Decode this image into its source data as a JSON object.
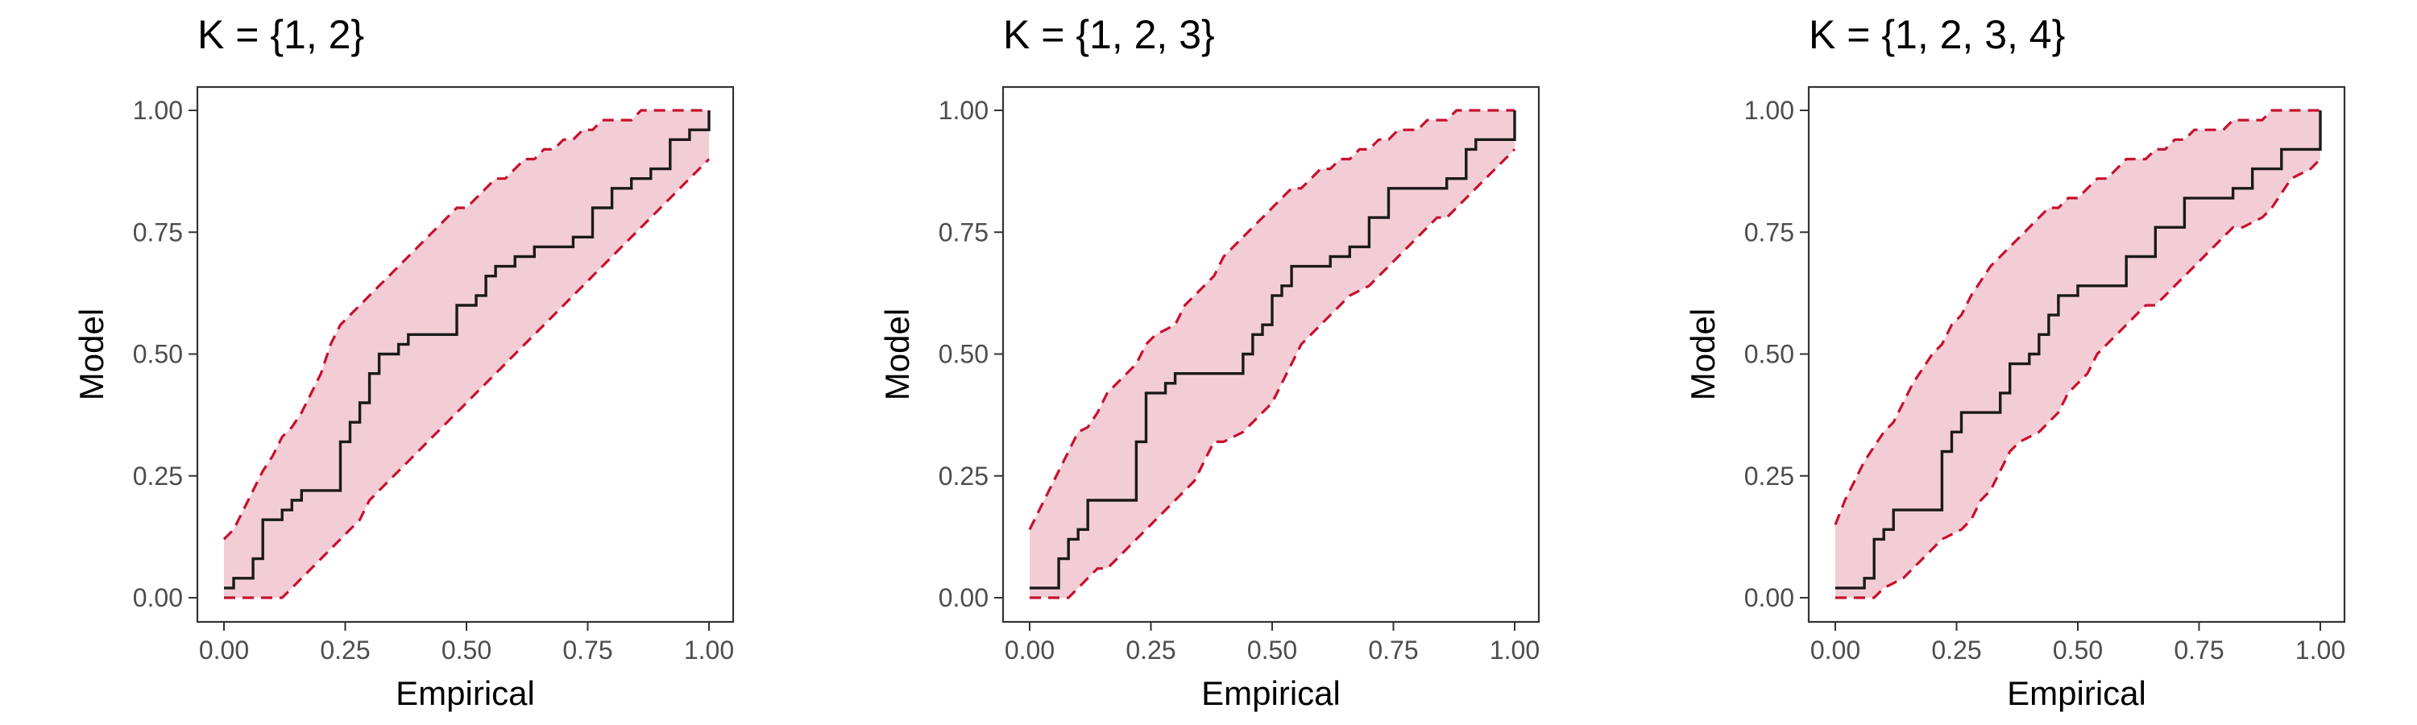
{
  "colors": {
    "band_fill": "#F3CDD5",
    "band_edge": "#C8102E",
    "line": "#1a1a1a",
    "axis": "#333333",
    "tick_text": "#4d4d4d"
  },
  "chart_data": [
    {
      "type": "line",
      "title": "K = {1, 2}",
      "xlabel": "Empirical",
      "ylabel": "Model",
      "xlim": [
        0,
        1
      ],
      "ylim": [
        0,
        1
      ],
      "xticks": [
        "0.00",
        "0.25",
        "0.50",
        "0.75",
        "1.00"
      ],
      "yticks": [
        "0.00",
        "0.25",
        "0.50",
        "0.75",
        "1.00"
      ],
      "grid": false,
      "band": {
        "x": [
          0.0,
          0.02,
          0.04,
          0.06,
          0.08,
          0.1,
          0.12,
          0.14,
          0.16,
          0.18,
          0.2,
          0.22,
          0.24,
          0.26,
          0.28,
          0.3,
          0.32,
          0.34,
          0.36,
          0.38,
          0.4,
          0.42,
          0.44,
          0.46,
          0.48,
          0.5,
          0.52,
          0.54,
          0.56,
          0.58,
          0.6,
          0.62,
          0.64,
          0.66,
          0.68,
          0.7,
          0.72,
          0.74,
          0.76,
          0.78,
          0.8,
          0.82,
          0.84,
          0.86,
          0.88,
          0.9,
          0.92,
          0.94,
          0.96,
          0.98,
          1.0
        ],
        "upper": [
          0.12,
          0.14,
          0.18,
          0.22,
          0.26,
          0.29,
          0.33,
          0.35,
          0.38,
          0.42,
          0.46,
          0.52,
          0.56,
          0.58,
          0.6,
          0.62,
          0.64,
          0.66,
          0.68,
          0.7,
          0.72,
          0.74,
          0.76,
          0.78,
          0.8,
          0.8,
          0.82,
          0.84,
          0.86,
          0.86,
          0.88,
          0.9,
          0.9,
          0.92,
          0.92,
          0.94,
          0.94,
          0.96,
          0.96,
          0.98,
          0.98,
          0.98,
          0.98,
          1.0,
          1.0,
          1.0,
          1.0,
          1.0,
          1.0,
          1.0,
          1.0
        ],
        "lower": [
          0.0,
          0.0,
          0.0,
          0.0,
          0.0,
          0.0,
          0.0,
          0.02,
          0.04,
          0.06,
          0.08,
          0.1,
          0.12,
          0.14,
          0.16,
          0.2,
          0.22,
          0.24,
          0.26,
          0.28,
          0.3,
          0.32,
          0.34,
          0.36,
          0.38,
          0.4,
          0.42,
          0.44,
          0.46,
          0.48,
          0.5,
          0.52,
          0.54,
          0.56,
          0.58,
          0.6,
          0.62,
          0.64,
          0.66,
          0.68,
          0.7,
          0.72,
          0.74,
          0.76,
          0.78,
          0.8,
          0.82,
          0.84,
          0.86,
          0.88,
          0.9
        ]
      },
      "step_x": [
        0.0,
        0.02,
        0.02,
        0.04,
        0.06,
        0.06,
        0.08,
        0.08,
        0.12,
        0.12,
        0.14,
        0.14,
        0.16,
        0.16,
        0.24,
        0.24,
        0.26,
        0.26,
        0.28,
        0.28,
        0.3,
        0.3,
        0.32,
        0.32,
        0.36,
        0.36,
        0.38,
        0.38,
        0.42,
        0.42,
        0.48,
        0.48,
        0.52,
        0.52,
        0.54,
        0.54,
        0.56,
        0.56,
        0.6,
        0.6,
        0.64,
        0.64,
        0.68,
        0.68,
        0.72,
        0.72,
        0.76,
        0.76,
        0.8,
        0.8,
        0.84,
        0.84,
        0.88,
        0.88,
        0.92,
        0.92,
        0.96,
        0.96,
        1.0,
        1.0
      ],
      "step_y": [
        0.02,
        0.02,
        0.04,
        0.04,
        0.04,
        0.08,
        0.08,
        0.16,
        0.16,
        0.18,
        0.18,
        0.2,
        0.2,
        0.22,
        0.22,
        0.32,
        0.32,
        0.36,
        0.36,
        0.4,
        0.4,
        0.46,
        0.46,
        0.5,
        0.5,
        0.52,
        0.52,
        0.54,
        0.54,
        0.54,
        0.54,
        0.6,
        0.6,
        0.62,
        0.62,
        0.66,
        0.66,
        0.68,
        0.68,
        0.7,
        0.7,
        0.72,
        0.72,
        0.72,
        0.72,
        0.74,
        0.74,
        0.8,
        0.8,
        0.84,
        0.84,
        0.86,
        0.86,
        0.88,
        0.88,
        0.94,
        0.94,
        0.96,
        0.96,
        1.0
      ]
    },
    {
      "type": "line",
      "title": "K = {1, 2, 3}",
      "xlabel": "Empirical",
      "ylabel": "Model",
      "xlim": [
        0,
        1
      ],
      "ylim": [
        0,
        1
      ],
      "xticks": [
        "0.00",
        "0.25",
        "0.50",
        "0.75",
        "1.00"
      ],
      "yticks": [
        "0.00",
        "0.25",
        "0.50",
        "0.75",
        "1.00"
      ],
      "grid": false,
      "band": {
        "x": [
          0.0,
          0.02,
          0.04,
          0.06,
          0.08,
          0.1,
          0.12,
          0.14,
          0.16,
          0.18,
          0.2,
          0.22,
          0.24,
          0.26,
          0.28,
          0.3,
          0.32,
          0.34,
          0.36,
          0.38,
          0.4,
          0.42,
          0.44,
          0.46,
          0.48,
          0.5,
          0.52,
          0.54,
          0.56,
          0.58,
          0.6,
          0.62,
          0.64,
          0.66,
          0.68,
          0.7,
          0.72,
          0.74,
          0.76,
          0.78,
          0.8,
          0.82,
          0.84,
          0.86,
          0.88,
          0.9,
          0.92,
          0.94,
          0.96,
          0.98,
          1.0
        ],
        "upper": [
          0.14,
          0.18,
          0.22,
          0.26,
          0.3,
          0.34,
          0.35,
          0.38,
          0.42,
          0.44,
          0.46,
          0.48,
          0.52,
          0.54,
          0.55,
          0.56,
          0.6,
          0.62,
          0.64,
          0.66,
          0.7,
          0.72,
          0.74,
          0.76,
          0.78,
          0.8,
          0.82,
          0.84,
          0.84,
          0.86,
          0.88,
          0.88,
          0.9,
          0.9,
          0.92,
          0.92,
          0.94,
          0.94,
          0.96,
          0.96,
          0.96,
          0.98,
          0.98,
          0.98,
          1.0,
          1.0,
          1.0,
          1.0,
          1.0,
          1.0,
          1.0
        ],
        "lower": [
          0.0,
          0.0,
          0.0,
          0.0,
          0.0,
          0.02,
          0.04,
          0.06,
          0.06,
          0.08,
          0.1,
          0.12,
          0.14,
          0.16,
          0.18,
          0.2,
          0.22,
          0.24,
          0.28,
          0.32,
          0.32,
          0.33,
          0.34,
          0.36,
          0.38,
          0.4,
          0.44,
          0.48,
          0.52,
          0.54,
          0.56,
          0.58,
          0.6,
          0.62,
          0.63,
          0.64,
          0.66,
          0.68,
          0.7,
          0.72,
          0.74,
          0.76,
          0.78,
          0.78,
          0.8,
          0.82,
          0.84,
          0.86,
          0.88,
          0.9,
          0.92
        ]
      },
      "step_x": [
        0.0,
        0.02,
        0.02,
        0.06,
        0.06,
        0.08,
        0.08,
        0.1,
        0.1,
        0.12,
        0.12,
        0.22,
        0.22,
        0.24,
        0.24,
        0.28,
        0.28,
        0.3,
        0.3,
        0.44,
        0.44,
        0.46,
        0.46,
        0.48,
        0.48,
        0.5,
        0.5,
        0.52,
        0.52,
        0.54,
        0.54,
        0.62,
        0.62,
        0.66,
        0.66,
        0.7,
        0.7,
        0.74,
        0.74,
        0.86,
        0.86,
        0.9,
        0.9,
        0.92,
        0.92,
        0.98,
        0.98,
        1.0,
        1.0
      ],
      "step_y": [
        0.02,
        0.02,
        0.02,
        0.02,
        0.08,
        0.08,
        0.12,
        0.12,
        0.14,
        0.14,
        0.2,
        0.2,
        0.32,
        0.32,
        0.42,
        0.42,
        0.44,
        0.44,
        0.46,
        0.46,
        0.5,
        0.5,
        0.54,
        0.54,
        0.56,
        0.56,
        0.62,
        0.62,
        0.64,
        0.64,
        0.68,
        0.68,
        0.7,
        0.7,
        0.72,
        0.72,
        0.78,
        0.78,
        0.84,
        0.84,
        0.86,
        0.86,
        0.92,
        0.92,
        0.94,
        0.94,
        0.94,
        0.94,
        1.0
      ]
    },
    {
      "type": "line",
      "title": "K = {1, 2, 3, 4}",
      "xlabel": "Empirical",
      "ylabel": "Model",
      "xlim": [
        0,
        1
      ],
      "ylim": [
        0,
        1
      ],
      "xticks": [
        "0.00",
        "0.25",
        "0.50",
        "0.75",
        "1.00"
      ],
      "yticks": [
        "0.00",
        "0.25",
        "0.50",
        "0.75",
        "1.00"
      ],
      "grid": false,
      "band": {
        "x": [
          0.0,
          0.02,
          0.04,
          0.06,
          0.08,
          0.1,
          0.12,
          0.14,
          0.16,
          0.18,
          0.2,
          0.22,
          0.24,
          0.26,
          0.28,
          0.3,
          0.32,
          0.34,
          0.36,
          0.38,
          0.4,
          0.42,
          0.44,
          0.46,
          0.48,
          0.5,
          0.52,
          0.54,
          0.56,
          0.58,
          0.6,
          0.62,
          0.64,
          0.66,
          0.68,
          0.7,
          0.72,
          0.74,
          0.76,
          0.78,
          0.8,
          0.82,
          0.84,
          0.86,
          0.88,
          0.9,
          0.92,
          0.94,
          0.96,
          0.98,
          1.0
        ],
        "upper": [
          0.15,
          0.2,
          0.24,
          0.28,
          0.31,
          0.34,
          0.36,
          0.4,
          0.44,
          0.47,
          0.5,
          0.52,
          0.56,
          0.58,
          0.62,
          0.65,
          0.68,
          0.7,
          0.72,
          0.74,
          0.76,
          0.78,
          0.8,
          0.8,
          0.82,
          0.82,
          0.84,
          0.86,
          0.86,
          0.88,
          0.9,
          0.9,
          0.9,
          0.92,
          0.92,
          0.94,
          0.94,
          0.96,
          0.96,
          0.96,
          0.96,
          0.98,
          0.98,
          0.98,
          0.98,
          1.0,
          1.0,
          1.0,
          1.0,
          1.0,
          1.0
        ],
        "lower": [
          0.0,
          0.0,
          0.0,
          0.0,
          0.0,
          0.02,
          0.03,
          0.04,
          0.06,
          0.08,
          0.1,
          0.12,
          0.13,
          0.14,
          0.16,
          0.2,
          0.22,
          0.26,
          0.3,
          0.32,
          0.33,
          0.34,
          0.36,
          0.38,
          0.42,
          0.44,
          0.46,
          0.5,
          0.52,
          0.54,
          0.56,
          0.58,
          0.6,
          0.6,
          0.62,
          0.64,
          0.66,
          0.68,
          0.7,
          0.72,
          0.74,
          0.76,
          0.76,
          0.77,
          0.78,
          0.8,
          0.83,
          0.86,
          0.87,
          0.88,
          0.9
        ]
      },
      "step_x": [
        0.0,
        0.06,
        0.06,
        0.08,
        0.08,
        0.1,
        0.1,
        0.12,
        0.12,
        0.22,
        0.22,
        0.24,
        0.24,
        0.26,
        0.26,
        0.34,
        0.34,
        0.36,
        0.36,
        0.4,
        0.4,
        0.42,
        0.42,
        0.44,
        0.44,
        0.46,
        0.46,
        0.5,
        0.5,
        0.6,
        0.6,
        0.66,
        0.66,
        0.72,
        0.72,
        0.82,
        0.82,
        0.86,
        0.86,
        0.92,
        0.92,
        0.98,
        0.98,
        1.0,
        1.0
      ],
      "step_y": [
        0.02,
        0.02,
        0.04,
        0.04,
        0.12,
        0.12,
        0.14,
        0.14,
        0.18,
        0.18,
        0.3,
        0.3,
        0.34,
        0.34,
        0.38,
        0.38,
        0.42,
        0.42,
        0.48,
        0.48,
        0.5,
        0.5,
        0.54,
        0.54,
        0.58,
        0.58,
        0.62,
        0.62,
        0.64,
        0.64,
        0.7,
        0.7,
        0.76,
        0.76,
        0.82,
        0.82,
        0.84,
        0.84,
        0.88,
        0.88,
        0.92,
        0.92,
        0.92,
        0.92,
        1.0
      ]
    }
  ]
}
